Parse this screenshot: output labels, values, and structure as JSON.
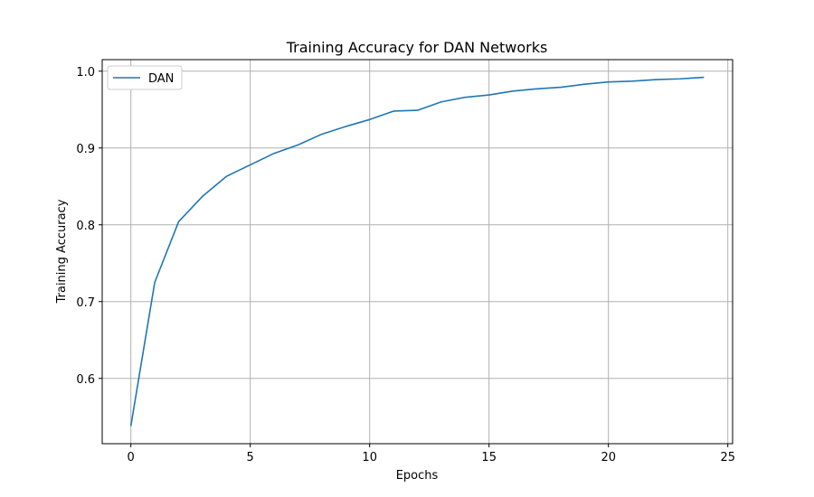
{
  "chart_data": {
    "type": "line",
    "title": "Training Accuracy for DAN Networks",
    "xlabel": "Epochs",
    "ylabel": "Training Accuracy",
    "xlim": [
      -1.2,
      25.2
    ],
    "ylim": [
      0.515,
      1.015
    ],
    "xticks": [
      0,
      5,
      10,
      15,
      20,
      25
    ],
    "xtick_labels": [
      "0",
      "5",
      "10",
      "15",
      "20",
      "25"
    ],
    "yticks": [
      0.6,
      0.7,
      0.8,
      0.9,
      1.0
    ],
    "ytick_labels": [
      "0.6",
      "0.7",
      "0.8",
      "0.9",
      "1.0"
    ],
    "grid": true,
    "legend_position": "upper-left",
    "series": [
      {
        "name": "DAN",
        "color": "#1f77b4",
        "x": [
          0,
          1,
          2,
          3,
          4,
          5,
          6,
          7,
          8,
          9,
          10,
          11,
          12,
          13,
          14,
          15,
          16,
          17,
          18,
          19,
          20,
          21,
          22,
          23,
          24
        ],
        "y": [
          0.538,
          0.725,
          0.804,
          0.837,
          0.863,
          0.878,
          0.893,
          0.904,
          0.918,
          0.928,
          0.937,
          0.948,
          0.949,
          0.96,
          0.966,
          0.969,
          0.974,
          0.977,
          0.979,
          0.983,
          0.986,
          0.987,
          0.989,
          0.99,
          0.992
        ]
      }
    ]
  }
}
